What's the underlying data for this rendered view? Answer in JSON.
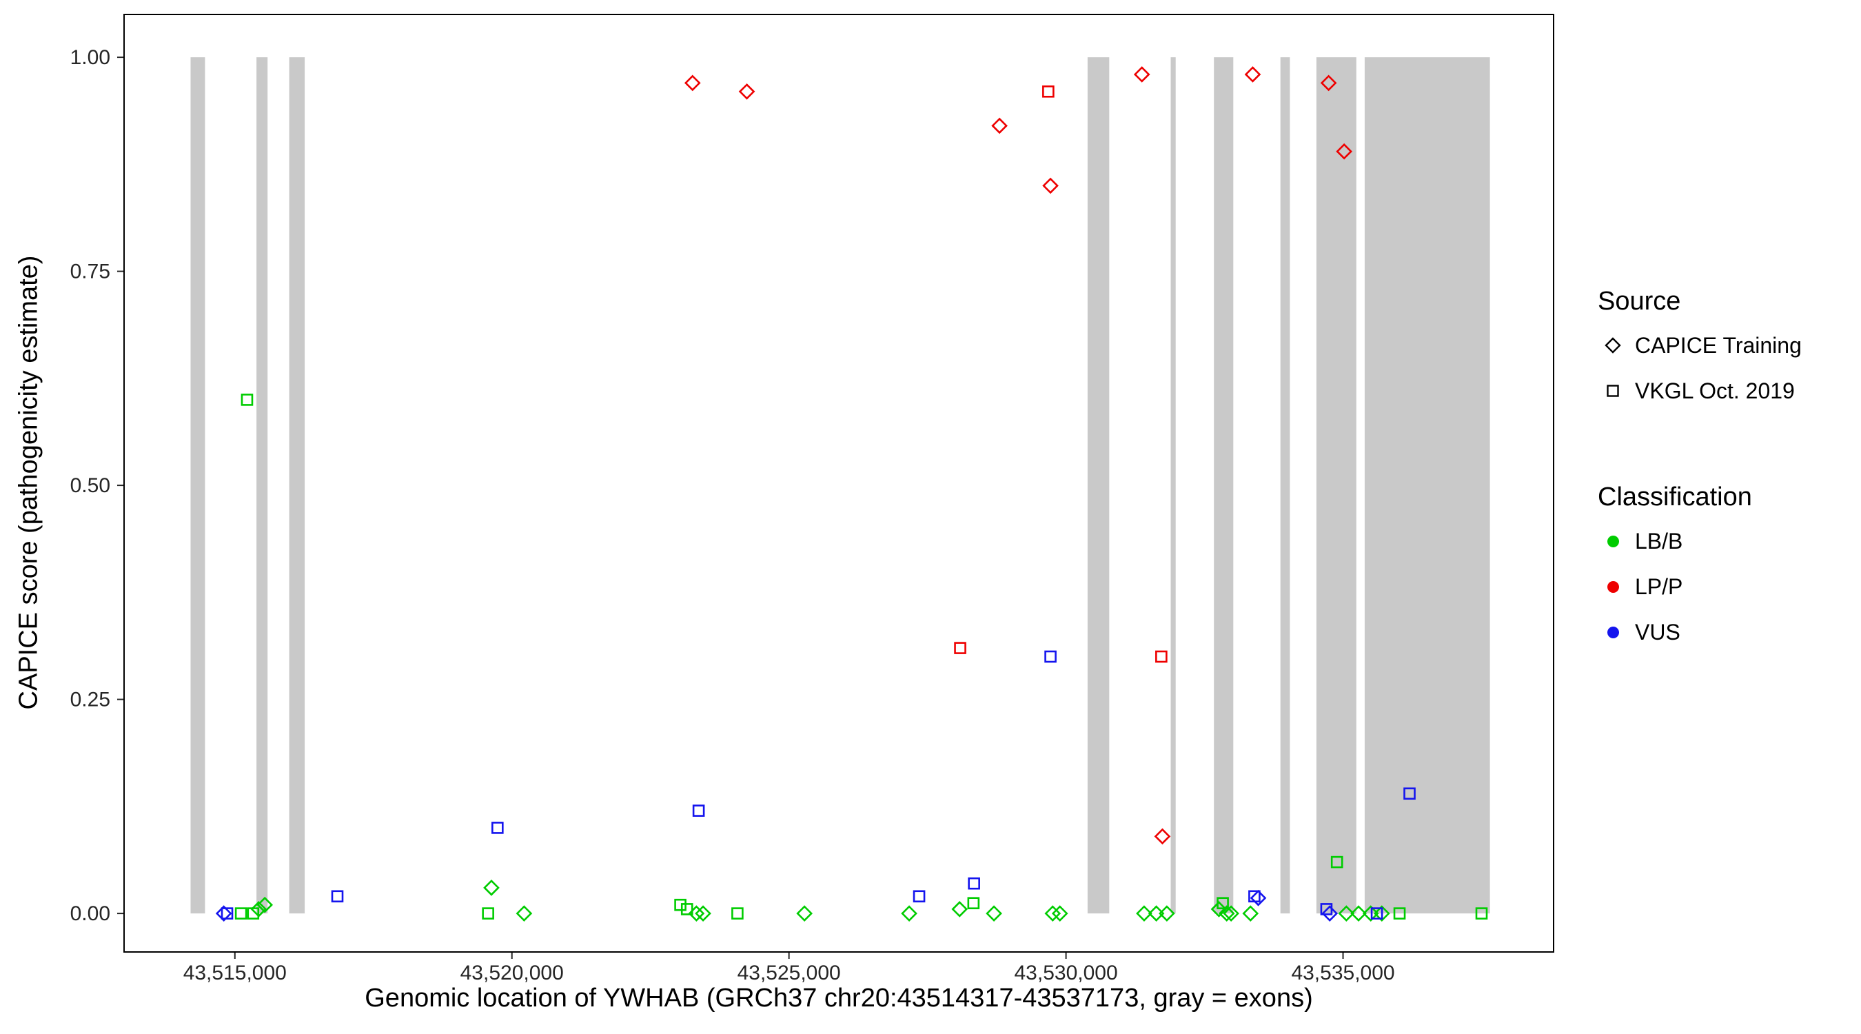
{
  "chart_data": {
    "type": "scatter",
    "title": "",
    "xlabel": "Genomic location of YWHAB (GRCh37 chr20:43514317-43537173, gray = exons)",
    "ylabel": "CAPICE score (pathogenicity estimate)",
    "xlim": [
      43513000,
      43538800
    ],
    "ylim": [
      -0.045,
      1.05
    ],
    "grid": false,
    "legend_position": "right",
    "x_ticks": [
      {
        "value": 43515000,
        "label": "43,515,000"
      },
      {
        "value": 43520000,
        "label": "43,520,000"
      },
      {
        "value": 43525000,
        "label": "43,525,000"
      },
      {
        "value": 43530000,
        "label": "43,530,000"
      },
      {
        "value": 43535000,
        "label": "43,535,000"
      }
    ],
    "y_ticks": [
      {
        "value": 0,
        "label": "0.00"
      },
      {
        "value": 0.25,
        "label": "0.25"
      },
      {
        "value": 0.5,
        "label": "0.50"
      },
      {
        "value": 0.75,
        "label": "0.75"
      },
      {
        "value": 1,
        "label": "1.00"
      }
    ],
    "exon_color": "#c9c9c9",
    "exons": [
      [
        43514200,
        43514460
      ],
      [
        43515390,
        43515590
      ],
      [
        43515980,
        43516260
      ],
      [
        43530390,
        43530780
      ],
      [
        43531890,
        43531980
      ],
      [
        43532670,
        43533020
      ],
      [
        43533870,
        43534040
      ],
      [
        43534520,
        43535240
      ],
      [
        43535390,
        43537650
      ]
    ],
    "colors": {
      "LB/B": "#00cc00",
      "LP/P": "#ee0000",
      "VUS": "#1414ee"
    },
    "shapes": {
      "CAPICE Training": "diamond",
      "VKGL Oct. 2019": "square"
    },
    "points": [
      {
        "x": 43523260,
        "y": 0.97,
        "source": "CAPICE Training",
        "class": "LP/P"
      },
      {
        "x": 43524240,
        "y": 0.96,
        "source": "CAPICE Training",
        "class": "LP/P"
      },
      {
        "x": 43528800,
        "y": 0.92,
        "source": "CAPICE Training",
        "class": "LP/P"
      },
      {
        "x": 43529720,
        "y": 0.85,
        "source": "CAPICE Training",
        "class": "LP/P"
      },
      {
        "x": 43531370,
        "y": 0.98,
        "source": "CAPICE Training",
        "class": "LP/P"
      },
      {
        "x": 43533370,
        "y": 0.98,
        "source": "CAPICE Training",
        "class": "LP/P"
      },
      {
        "x": 43534740,
        "y": 0.97,
        "source": "CAPICE Training",
        "class": "LP/P"
      },
      {
        "x": 43535020,
        "y": 0.89,
        "source": "CAPICE Training",
        "class": "LP/P"
      },
      {
        "x": 43531740,
        "y": 0.09,
        "source": "CAPICE Training",
        "class": "LP/P"
      },
      {
        "x": 43529680,
        "y": 0.96,
        "source": "VKGL Oct. 2019",
        "class": "LP/P"
      },
      {
        "x": 43528090,
        "y": 0.31,
        "source": "VKGL Oct. 2019",
        "class": "LP/P"
      },
      {
        "x": 43531720,
        "y": 0.3,
        "source": "VKGL Oct. 2019",
        "class": "LP/P"
      },
      {
        "x": 43515220,
        "y": 0.6,
        "source": "VKGL Oct. 2019",
        "class": "LB/B"
      },
      {
        "x": 43515110,
        "y": 0.0,
        "source": "VKGL Oct. 2019",
        "class": "LB/B"
      },
      {
        "x": 43515330,
        "y": 0.0,
        "source": "VKGL Oct. 2019",
        "class": "LB/B"
      },
      {
        "x": 43515430,
        "y": 0.005,
        "source": "CAPICE Training",
        "class": "LB/B"
      },
      {
        "x": 43515540,
        "y": 0.01,
        "source": "CAPICE Training",
        "class": "LB/B"
      },
      {
        "x": 43519630,
        "y": 0.03,
        "source": "CAPICE Training",
        "class": "LB/B"
      },
      {
        "x": 43519570,
        "y": 0.0,
        "source": "VKGL Oct. 2019",
        "class": "LB/B"
      },
      {
        "x": 43520220,
        "y": 0.0,
        "source": "CAPICE Training",
        "class": "LB/B"
      },
      {
        "x": 43523040,
        "y": 0.01,
        "source": "VKGL Oct. 2019",
        "class": "LB/B"
      },
      {
        "x": 43523160,
        "y": 0.005,
        "source": "VKGL Oct. 2019",
        "class": "LB/B"
      },
      {
        "x": 43523330,
        "y": 0.0,
        "source": "CAPICE Training",
        "class": "LB/B"
      },
      {
        "x": 43523450,
        "y": 0.0,
        "source": "CAPICE Training",
        "class": "LB/B"
      },
      {
        "x": 43524070,
        "y": 0.0,
        "source": "VKGL Oct. 2019",
        "class": "LB/B"
      },
      {
        "x": 43525280,
        "y": 0.0,
        "source": "CAPICE Training",
        "class": "LB/B"
      },
      {
        "x": 43527170,
        "y": 0.0,
        "source": "CAPICE Training",
        "class": "LB/B"
      },
      {
        "x": 43528080,
        "y": 0.005,
        "source": "CAPICE Training",
        "class": "LB/B"
      },
      {
        "x": 43528330,
        "y": 0.012,
        "source": "VKGL Oct. 2019",
        "class": "LB/B"
      },
      {
        "x": 43528700,
        "y": 0.0,
        "source": "CAPICE Training",
        "class": "LB/B"
      },
      {
        "x": 43529760,
        "y": 0.0,
        "source": "CAPICE Training",
        "class": "LB/B"
      },
      {
        "x": 43529890,
        "y": 0.0,
        "source": "CAPICE Training",
        "class": "LB/B"
      },
      {
        "x": 43531410,
        "y": 0.0,
        "source": "CAPICE Training",
        "class": "LB/B"
      },
      {
        "x": 43531630,
        "y": 0.0,
        "source": "CAPICE Training",
        "class": "LB/B"
      },
      {
        "x": 43531820,
        "y": 0.0,
        "source": "CAPICE Training",
        "class": "LB/B"
      },
      {
        "x": 43532760,
        "y": 0.005,
        "source": "CAPICE Training",
        "class": "LB/B"
      },
      {
        "x": 43532830,
        "y": 0.012,
        "source": "VKGL Oct. 2019",
        "class": "LB/B"
      },
      {
        "x": 43532900,
        "y": 0.0,
        "source": "CAPICE Training",
        "class": "LB/B"
      },
      {
        "x": 43532980,
        "y": 0.0,
        "source": "CAPICE Training",
        "class": "LB/B"
      },
      {
        "x": 43533330,
        "y": 0.0,
        "source": "CAPICE Training",
        "class": "LB/B"
      },
      {
        "x": 43534890,
        "y": 0.06,
        "source": "VKGL Oct. 2019",
        "class": "LB/B"
      },
      {
        "x": 43535060,
        "y": 0.0,
        "source": "CAPICE Training",
        "class": "LB/B"
      },
      {
        "x": 43535280,
        "y": 0.0,
        "source": "CAPICE Training",
        "class": "LB/B"
      },
      {
        "x": 43535500,
        "y": 0.0,
        "source": "CAPICE Training",
        "class": "LB/B"
      },
      {
        "x": 43535700,
        "y": 0.0,
        "source": "CAPICE Training",
        "class": "LB/B"
      },
      {
        "x": 43536020,
        "y": 0.0,
        "source": "VKGL Oct. 2019",
        "class": "LB/B"
      },
      {
        "x": 43537500,
        "y": 0.0,
        "source": "VKGL Oct. 2019",
        "class": "LB/B"
      },
      {
        "x": 43514800,
        "y": 0.0,
        "source": "CAPICE Training",
        "class": "VUS"
      },
      {
        "x": 43514860,
        "y": 0.0,
        "source": "VKGL Oct. 2019",
        "class": "VUS"
      },
      {
        "x": 43516850,
        "y": 0.02,
        "source": "VKGL Oct. 2019",
        "class": "VUS"
      },
      {
        "x": 43519740,
        "y": 0.1,
        "source": "VKGL Oct. 2019",
        "class": "VUS"
      },
      {
        "x": 43523370,
        "y": 0.12,
        "source": "VKGL Oct. 2019",
        "class": "VUS"
      },
      {
        "x": 43527350,
        "y": 0.02,
        "source": "VKGL Oct. 2019",
        "class": "VUS"
      },
      {
        "x": 43528340,
        "y": 0.035,
        "source": "VKGL Oct. 2019",
        "class": "VUS"
      },
      {
        "x": 43529720,
        "y": 0.3,
        "source": "VKGL Oct. 2019",
        "class": "VUS"
      },
      {
        "x": 43533400,
        "y": 0.02,
        "source": "VKGL Oct. 2019",
        "class": "VUS"
      },
      {
        "x": 43533470,
        "y": 0.018,
        "source": "CAPICE Training",
        "class": "VUS"
      },
      {
        "x": 43534700,
        "y": 0.005,
        "source": "VKGL Oct. 2019",
        "class": "VUS"
      },
      {
        "x": 43534760,
        "y": 0.0,
        "source": "CAPICE Training",
        "class": "VUS"
      },
      {
        "x": 43535610,
        "y": 0.0,
        "source": "VKGL Oct. 2019",
        "class": "VUS"
      },
      {
        "x": 43536200,
        "y": 0.14,
        "source": "VKGL Oct. 2019",
        "class": "VUS"
      }
    ]
  },
  "legend": {
    "source_title": "Source",
    "source_items": [
      {
        "label": "CAPICE Training",
        "shape": "diamond"
      },
      {
        "label": "VKGL Oct. 2019",
        "shape": "square"
      }
    ],
    "classification_title": "Classification",
    "classification_items": [
      {
        "label": "LB/B",
        "class": "LB/B"
      },
      {
        "label": "LP/P",
        "class": "LP/P"
      },
      {
        "label": "VUS",
        "class": "VUS"
      }
    ]
  }
}
